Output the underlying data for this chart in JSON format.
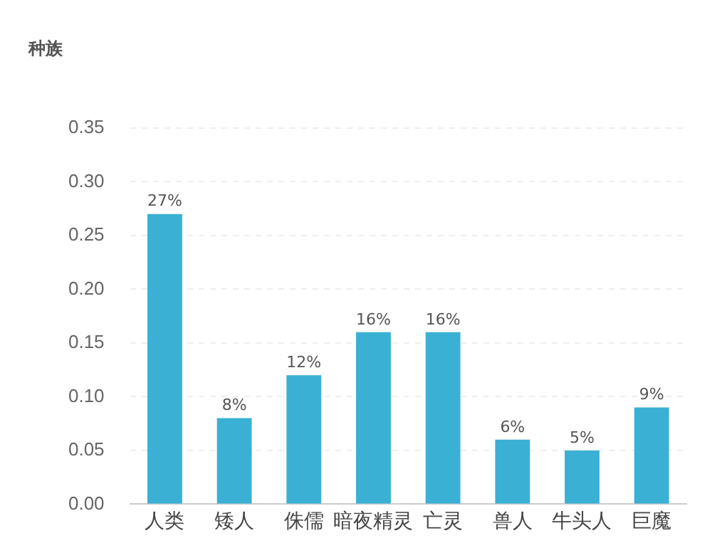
{
  "chart_data": {
    "type": "bar",
    "title": "种族",
    "categories": [
      "人类",
      "矮人",
      "侏儒",
      "暗夜精灵",
      "亡灵",
      "兽人",
      "牛头人",
      "巨魔"
    ],
    "values": [
      0.27,
      0.08,
      0.12,
      0.16,
      0.16,
      0.06,
      0.05,
      0.09
    ],
    "value_labels": [
      "27%",
      "8%",
      "12%",
      "16%",
      "16%",
      "6%",
      "5%",
      "9%"
    ],
    "color": "#3ab0d4",
    "ylim": [
      0,
      0.35
    ],
    "yticks": [
      {
        "value": 0,
        "label": "0.00"
      },
      {
        "value": 0.05,
        "label": "0.05"
      },
      {
        "value": 0.1,
        "label": "0.10"
      },
      {
        "value": 0.15,
        "label": "0.15"
      },
      {
        "value": 0.2,
        "label": "0.20"
      },
      {
        "value": 0.25,
        "label": "0.25"
      },
      {
        "value": 0.3,
        "label": "0.30"
      },
      {
        "value": 0.35,
        "label": "0.35"
      }
    ],
    "grid": "y",
    "legend": false
  }
}
